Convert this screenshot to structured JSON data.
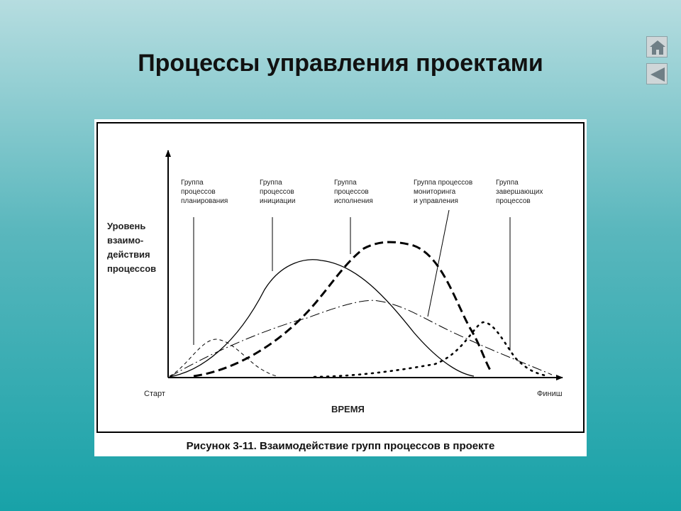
{
  "slide": {
    "title": "Процессы управления проектами"
  },
  "nav": {
    "home_icon": "home-icon",
    "back_icon": "triangle-left-icon"
  },
  "figure": {
    "caption": "Рисунок 3-11. Взаимодействие групп процессов в проекте",
    "y_label": [
      "Уровень",
      "взаимо-",
      "действия",
      "процессов"
    ],
    "x_label": "ВРЕМЯ",
    "x_start": "Старт",
    "x_end": "Финиш",
    "groups": [
      {
        "lines": [
          "Группа",
          "процессов",
          "планирования"
        ]
      },
      {
        "lines": [
          "Группа",
          "процессов",
          "инициации"
        ]
      },
      {
        "lines": [
          "Группа",
          "процессов",
          "исполнения"
        ]
      },
      {
        "lines": [
          "Группа процессов",
          "мониторинга",
          "и управления"
        ]
      },
      {
        "lines": [
          "Группа",
          "завершающих",
          "процессов"
        ]
      }
    ]
  }
}
